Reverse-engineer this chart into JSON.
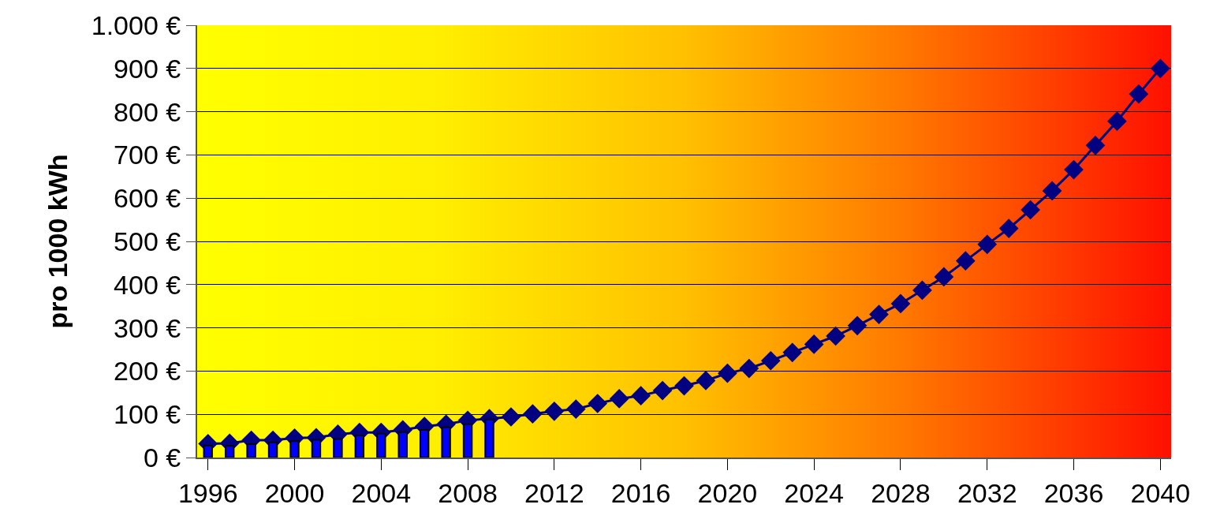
{
  "chart_data": {
    "type": "line",
    "ylabel": "pro 1000 kWh",
    "categories": [
      "1996",
      null,
      null,
      null,
      "2000",
      null,
      null,
      null,
      "2004",
      null,
      null,
      null,
      "2008",
      null,
      null,
      null,
      "2012",
      null,
      null,
      null,
      "2016",
      null,
      null,
      null,
      "2020",
      null,
      null,
      null,
      "2024",
      null,
      null,
      null,
      "2028",
      null,
      null,
      null,
      "2032",
      null,
      null,
      null,
      "2036",
      null,
      null,
      null,
      "2040"
    ],
    "series": [
      {
        "type": "bar",
        "color": "#0000ff",
        "values": [
          28,
          27,
          31,
          35,
          38,
          41,
          43,
          51,
          55,
          59,
          64,
          70,
          77,
          88,
          null,
          null,
          null,
          null,
          null,
          null,
          null,
          null,
          null,
          null,
          null,
          null,
          null,
          null,
          null,
          null,
          null,
          null,
          null,
          null,
          null,
          null,
          null,
          null,
          null,
          null,
          null,
          null,
          null,
          null,
          null
        ]
      },
      {
        "color": "#000080",
        "marker": "diamond",
        "line_style": "solid",
        "values": [
          32,
          33,
          40,
          40,
          45,
          46,
          54,
          58,
          58,
          64,
          72,
          77,
          86,
          90,
          94,
          101,
          107,
          112,
          125,
          136,
          143,
          155,
          166,
          178,
          195,
          206,
          224,
          243,
          262,
          281,
          305,
          331,
          356,
          387,
          418,
          455,
          493,
          530,
          573,
          617,
          666,
          722,
          778,
          841,
          900
        ]
      }
    ],
    "ylim": [
      0,
      1000
    ],
    "yticks": [
      {
        "value": 0,
        "label": "0 €"
      },
      {
        "value": 100,
        "label": "100 €"
      },
      {
        "value": 200,
        "label": "200 €"
      },
      {
        "value": 300,
        "label": "300 €"
      },
      {
        "value": 400,
        "label": "400 €"
      },
      {
        "value": 500,
        "label": "500 €"
      },
      {
        "value": 600,
        "label": "600 €"
      },
      {
        "value": 700,
        "label": "700 €"
      },
      {
        "value": 800,
        "label": "800 €"
      },
      {
        "value": 900,
        "label": "900 €"
      },
      {
        "value": 1000,
        "label": "1.000 €"
      }
    ],
    "grid": "y",
    "legend": false
  }
}
